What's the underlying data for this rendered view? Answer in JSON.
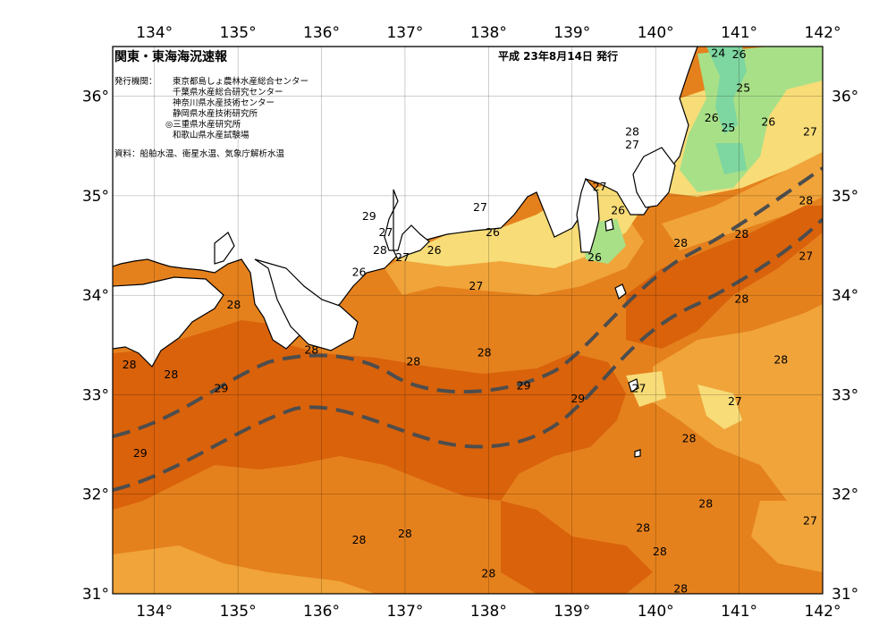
{
  "title": "関東・東海海況速報",
  "issue_date": "平成 23年8月14日 発行",
  "publisher_label": "発行機関：",
  "publishers": [
    "東京都島しょ農林水産総合センター",
    "千葉県水産総合研究センター",
    "神奈川県水産技術センター",
    "静岡県水産技術研究所",
    "◎三重県水産研究所",
    "和歌山県水産試験場"
  ],
  "sources": "資料：船舶水温、衛星水温、気象庁解析水温",
  "map": {
    "lon_range": [
      133.5,
      142
    ],
    "lat_range": [
      31,
      36.5
    ],
    "lon_ticks": [
      "134°",
      "135°",
      "136°",
      "137°",
      "138°",
      "139°",
      "140°",
      "141°",
      "142°"
    ],
    "lat_ticks": [
      "31°",
      "32°",
      "33°",
      "34°",
      "35°",
      "36°"
    ],
    "colors": {
      "sea_29": "#d9620b",
      "sea_28": "#e5811d",
      "sea_27": "#f0a43a",
      "sea_26": "#f7dc78",
      "sea_25": "#a8e088",
      "sea_24": "#7ed6a0",
      "land": "#ffffff",
      "kuroshio_axis": "#4d4d4d"
    },
    "isotherm_labels": [
      {
        "text": "24",
        "lon": 140.75,
        "lat": 36.44
      },
      {
        "text": "26",
        "lon": 141.0,
        "lat": 36.43
      },
      {
        "text": "25",
        "lon": 141.05,
        "lat": 36.09
      },
      {
        "text": "26",
        "lon": 140.67,
        "lat": 35.79
      },
      {
        "text": "25",
        "lon": 140.87,
        "lat": 35.69
      },
      {
        "text": "26",
        "lon": 141.35,
        "lat": 35.75
      },
      {
        "text": "27",
        "lon": 141.85,
        "lat": 35.65
      },
      {
        "text": "28",
        "lon": 139.72,
        "lat": 35.65
      },
      {
        "text": "27",
        "lon": 139.72,
        "lat": 35.52
      },
      {
        "text": "27",
        "lon": 139.33,
        "lat": 35.1
      },
      {
        "text": "26",
        "lon": 139.55,
        "lat": 34.86
      },
      {
        "text": "27",
        "lon": 137.9,
        "lat": 34.89
      },
      {
        "text": "26",
        "lon": 138.05,
        "lat": 34.64
      },
      {
        "text": "26",
        "lon": 137.35,
        "lat": 34.46
      },
      {
        "text": "26",
        "lon": 139.27,
        "lat": 34.39
      },
      {
        "text": "29",
        "lon": 136.57,
        "lat": 34.8
      },
      {
        "text": "27",
        "lon": 136.77,
        "lat": 34.64
      },
      {
        "text": "28",
        "lon": 136.7,
        "lat": 34.46
      },
      {
        "text": "27",
        "lon": 136.97,
        "lat": 34.39
      },
      {
        "text": "26",
        "lon": 136.45,
        "lat": 34.24
      },
      {
        "text": "28",
        "lon": 140.3,
        "lat": 34.53
      },
      {
        "text": "28",
        "lon": 141.03,
        "lat": 34.62
      },
      {
        "text": "28",
        "lon": 141.8,
        "lat": 34.96
      },
      {
        "text": "27",
        "lon": 141.8,
        "lat": 34.4
      },
      {
        "text": "27",
        "lon": 137.85,
        "lat": 34.1
      },
      {
        "text": "28",
        "lon": 134.95,
        "lat": 33.91
      },
      {
        "text": "28",
        "lon": 135.88,
        "lat": 33.46
      },
      {
        "text": "28",
        "lon": 137.1,
        "lat": 33.34
      },
      {
        "text": "28",
        "lon": 137.95,
        "lat": 33.43
      },
      {
        "text": "28",
        "lon": 141.03,
        "lat": 33.97
      },
      {
        "text": "28",
        "lon": 141.5,
        "lat": 33.36
      },
      {
        "text": "28",
        "lon": 133.7,
        "lat": 33.31
      },
      {
        "text": "28",
        "lon": 134.2,
        "lat": 33.21
      },
      {
        "text": "29",
        "lon": 134.8,
        "lat": 33.07
      },
      {
        "text": "29",
        "lon": 138.42,
        "lat": 33.1
      },
      {
        "text": "29",
        "lon": 139.07,
        "lat": 32.97
      },
      {
        "text": "27",
        "lon": 139.8,
        "lat": 33.07
      },
      {
        "text": "27",
        "lon": 140.95,
        "lat": 32.94
      },
      {
        "text": "28",
        "lon": 140.4,
        "lat": 32.57
      },
      {
        "text": "29",
        "lon": 133.83,
        "lat": 32.42
      },
      {
        "text": "28",
        "lon": 140.6,
        "lat": 31.91
      },
      {
        "text": "28",
        "lon": 139.85,
        "lat": 31.67
      },
      {
        "text": "27",
        "lon": 141.85,
        "lat": 31.74
      },
      {
        "text": "28",
        "lon": 136.45,
        "lat": 31.55
      },
      {
        "text": "28",
        "lon": 137.0,
        "lat": 31.61
      },
      {
        "text": "28",
        "lon": 138.0,
        "lat": 31.21
      },
      {
        "text": "28",
        "lon": 140.05,
        "lat": 31.43
      },
      {
        "text": "28",
        "lon": 140.3,
        "lat": 31.06
      }
    ]
  }
}
